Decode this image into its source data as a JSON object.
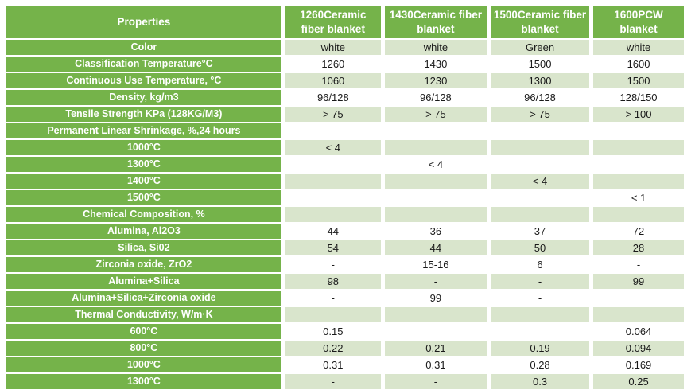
{
  "colors": {
    "header_green": "#75B34A",
    "band_light_green": "#D9E5CC",
    "header_text": "#FFFFFF",
    "value_text": "#1A1A1A",
    "page_background": "#FFFFFF"
  },
  "table": {
    "corner_header": "Properties",
    "columns": [
      "1260Ceramic fiber blanket",
      "1430Ceramic fiber blanket",
      "1500Ceramic fiber blanket",
      "1600PCW blanket"
    ],
    "rows": [
      {
        "label": "Color",
        "values": [
          "white",
          "white",
          "Green",
          "white"
        ]
      },
      {
        "label": "Classification Temperature°C",
        "values": [
          "1260",
          "1430",
          "1500",
          "1600"
        ]
      },
      {
        "label": "Continuous Use Temperature, °C",
        "values": [
          "1060",
          "1230",
          "1300",
          "1500"
        ]
      },
      {
        "label": "Density, kg/m3",
        "values": [
          "96/128",
          "96/128",
          "96/128",
          "128/150"
        ]
      },
      {
        "label": "Tensile Strength KPa (128KG/M3)",
        "values": [
          "> 75",
          "> 75",
          "> 75",
          "> 100"
        ]
      },
      {
        "label": "Permanent Linear Shrinkage, %,24 hours",
        "values": [
          "",
          "",
          "",
          ""
        ]
      },
      {
        "label": "1000°C",
        "values": [
          "< 4",
          "",
          "",
          ""
        ]
      },
      {
        "label": "1300°C",
        "values": [
          "",
          "< 4",
          "",
          ""
        ]
      },
      {
        "label": "1400°C",
        "values": [
          "",
          "",
          "< 4",
          ""
        ]
      },
      {
        "label": "1500°C",
        "values": [
          "",
          "",
          "",
          "< 1"
        ]
      },
      {
        "label": "Chemical Composition, %",
        "values": [
          "",
          "",
          "",
          ""
        ]
      },
      {
        "label": "Alumina, Al2O3",
        "values": [
          "44",
          "36",
          "37",
          "72"
        ]
      },
      {
        "label": "Silica, Si02",
        "values": [
          "54",
          "44",
          "50",
          "28"
        ]
      },
      {
        "label": "Zirconia oxide, ZrO2",
        "values": [
          "-",
          "15-16",
          "6",
          "-"
        ]
      },
      {
        "label": "Alumina+Silica",
        "values": [
          "98",
          "-",
          "-",
          "99"
        ]
      },
      {
        "label": "Alumina+Silica+Zirconia oxide",
        "values": [
          "-",
          "99",
          "-",
          ""
        ]
      },
      {
        "label": "Thermal Conductivity, W/m·K",
        "values": [
          "",
          "",
          "",
          ""
        ]
      },
      {
        "label": "600°C",
        "values": [
          "0.15",
          "",
          "",
          "0.064"
        ]
      },
      {
        "label": "800°C",
        "values": [
          "0.22",
          "0.21",
          "0.19",
          "0.094"
        ]
      },
      {
        "label": "1000°C",
        "values": [
          "0.31",
          "0.31",
          "0.28",
          "0.169"
        ]
      },
      {
        "label": "1300°C",
        "values": [
          "-",
          "-",
          "0.3",
          "0.25"
        ]
      }
    ]
  }
}
